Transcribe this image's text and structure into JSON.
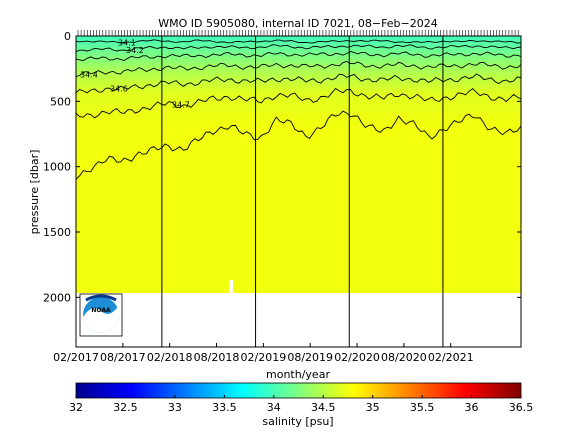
{
  "chart_data": {
    "type": "heatmap",
    "title": "WMO ID 5905080, internal ID 7021, 08−Feb−2024",
    "xlabel": "month/year",
    "ylabel": "pressure [dbar]",
    "x_ticks": [
      "02/2017",
      "08/2017",
      "02/2018",
      "08/2018",
      "02/2019",
      "08/2019",
      "02/2020",
      "08/2020",
      "02/2021"
    ],
    "xlim": [
      "2017-02",
      "2021-11"
    ],
    "ylim": [
      2380,
      0
    ],
    "y_ticks": [
      0,
      500,
      1000,
      1500,
      2000
    ],
    "y_reversed": true,
    "year_boundaries": [
      "2018-01",
      "2019-01",
      "2020-01",
      "2021-01"
    ],
    "max_profile_pressure": 2000,
    "colorbar": {
      "label": "salinity [psu]",
      "min": 32,
      "max": 36.5,
      "ticks": [
        32,
        32.5,
        33,
        33.5,
        34,
        34.5,
        35,
        35.5,
        36,
        36.5
      ]
    },
    "contours": [
      {
        "level": 34.1,
        "label": "34.1",
        "depths": [
          40,
          40,
          45,
          50,
          40,
          35,
          40,
          45,
          35,
          40,
          50,
          45,
          40,
          35,
          40,
          50,
          45,
          40,
          35,
          40,
          35,
          45,
          50,
          45,
          40,
          45,
          35,
          40,
          45,
          50
        ]
      },
      {
        "level": 34.2,
        "label": "34.2",
        "depths": [
          110,
          105,
          100,
          110,
          95,
          90,
          85,
          95,
          90,
          80,
          85,
          90,
          85,
          75,
          80,
          90,
          85,
          80,
          75,
          80,
          85,
          75,
          80,
          90,
          85,
          80,
          75,
          85,
          90,
          85
        ]
      },
      {
        "level": 34.3,
        "label": "",
        "depths": [
          180,
          175,
          170,
          175,
          165,
          160,
          150,
          155,
          150,
          145,
          140,
          145,
          150,
          135,
          140,
          145,
          140,
          135,
          130,
          140,
          145,
          135,
          140,
          150,
          145,
          140,
          135,
          140,
          150,
          145
        ]
      },
      {
        "level": 34.4,
        "label": "34.4",
        "depths": [
          300,
          285,
          270,
          280,
          260,
          250,
          245,
          250,
          240,
          230,
          225,
          235,
          240,
          220,
          225,
          235,
          230,
          215,
          210,
          225,
          230,
          220,
          225,
          240,
          230,
          225,
          215,
          225,
          235,
          230
        ]
      },
      {
        "level": 34.6,
        "label": "34.6",
        "depths": [
          440,
          420,
          400,
          410,
          385,
          370,
          360,
          365,
          355,
          340,
          330,
          345,
          350,
          325,
          330,
          345,
          335,
          315,
          310,
          330,
          340,
          320,
          330,
          350,
          335,
          325,
          315,
          330,
          345,
          335
        ]
      },
      {
        "level": 34.7,
        "label": "34.7",
        "depths": [
          620,
          600,
          580,
          590,
          560,
          540,
          520,
          530,
          510,
          480,
          460,
          490,
          500,
          450,
          460,
          490,
          470,
          430,
          420,
          460,
          480,
          440,
          460,
          500,
          470,
          450,
          430,
          460,
          490,
          470
        ]
      },
      {
        "level": 34.8,
        "label": "",
        "depths": [
          1080,
          1000,
          950,
          960,
          900,
          880,
          840,
          860,
          800,
          720,
          680,
          760,
          780,
          640,
          680,
          760,
          700,
          600,
          580,
          700,
          740,
          620,
          680,
          780,
          700,
          660,
          600,
          700,
          760,
          700
        ]
      }
    ]
  }
}
